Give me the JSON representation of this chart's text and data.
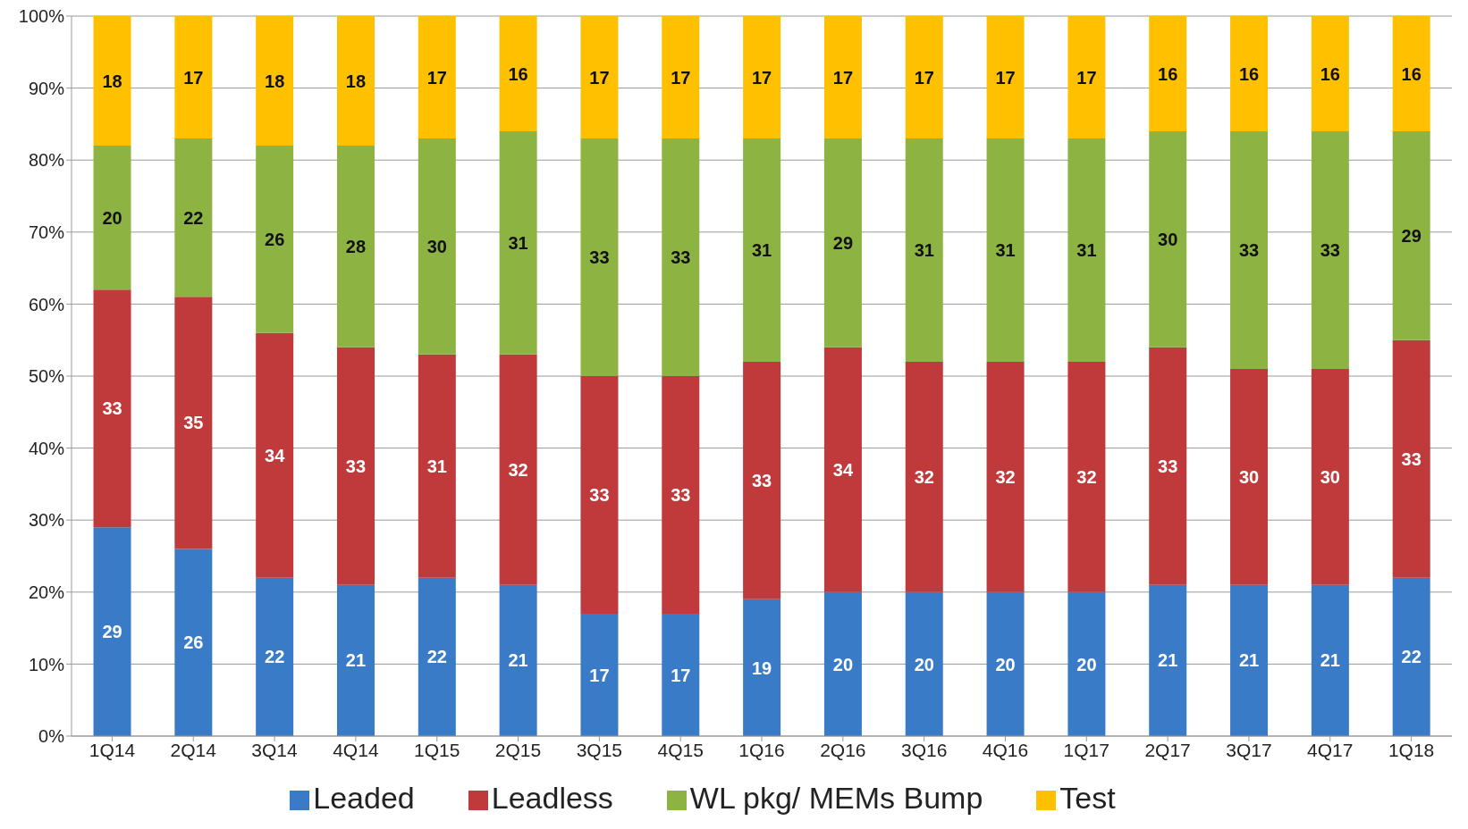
{
  "chart_data": {
    "type": "bar",
    "stacked": true,
    "data_labels": true,
    "grid": "y",
    "legend": "bottom",
    "categories": [
      "1Q14",
      "2Q14",
      "3Q14",
      "4Q14",
      "1Q15",
      "2Q15",
      "3Q15",
      "4Q15",
      "1Q16",
      "2Q16",
      "3Q16",
      "4Q16",
      "1Q17",
      "2Q17",
      "3Q17",
      "4Q17",
      "1Q18"
    ],
    "ylim": [
      0,
      100
    ],
    "yticks": [
      {
        "value": 0,
        "label": "0%"
      },
      {
        "value": 10,
        "label": "10%"
      },
      {
        "value": 20,
        "label": "20%"
      },
      {
        "value": 30,
        "label": "30%"
      },
      {
        "value": 40,
        "label": "40%"
      },
      {
        "value": 50,
        "label": "50%"
      },
      {
        "value": 60,
        "label": "60%"
      },
      {
        "value": 70,
        "label": "70%"
      },
      {
        "value": 80,
        "label": "80%"
      },
      {
        "value": 90,
        "label": "90%"
      },
      {
        "value": 100,
        "label": "100%"
      }
    ],
    "series": [
      {
        "name": "Leaded",
        "color": "#3a7bc8",
        "values": [
          29,
          26,
          22,
          21,
          22,
          21,
          17,
          17,
          19,
          20,
          20,
          20,
          20,
          21,
          21,
          21,
          22
        ]
      },
      {
        "name": "Leadless",
        "color": "#c0393b",
        "values": [
          33,
          35,
          34,
          33,
          31,
          32,
          33,
          33,
          33,
          34,
          32,
          32,
          32,
          33,
          30,
          30,
          33
        ]
      },
      {
        "name": "WL pkg/ MEMs Bump",
        "color": "#8db443",
        "values": [
          20,
          22,
          26,
          28,
          30,
          31,
          33,
          33,
          31,
          29,
          31,
          31,
          31,
          30,
          33,
          33,
          29
        ]
      },
      {
        "name": "Test",
        "color": "#ffc000",
        "values": [
          18,
          17,
          18,
          18,
          17,
          16,
          17,
          17,
          17,
          17,
          17,
          17,
          17,
          16,
          16,
          16,
          16
        ]
      }
    ]
  }
}
